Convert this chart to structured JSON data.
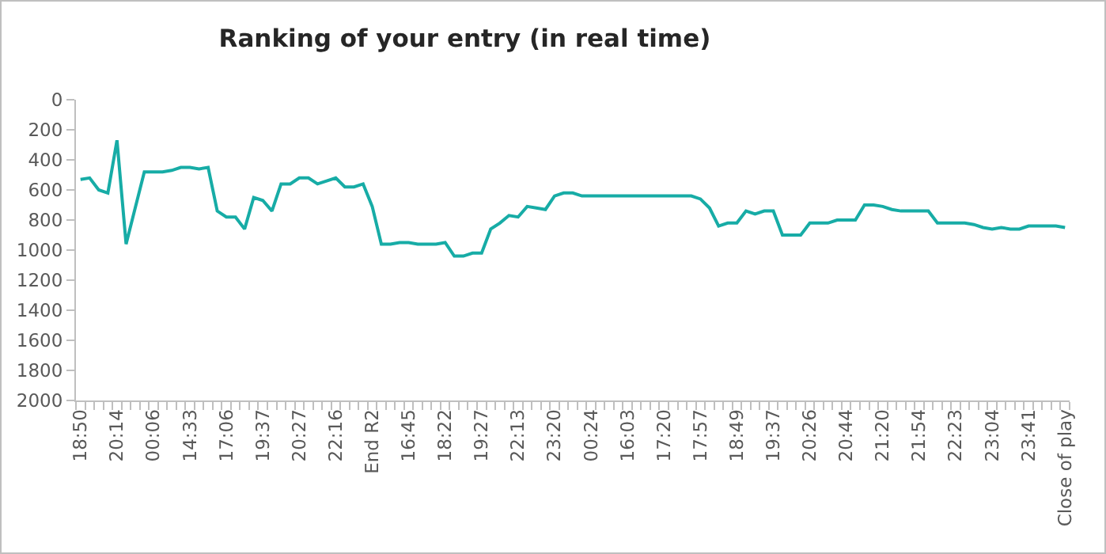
{
  "chart_data": {
    "type": "line",
    "title": "Ranking of your entry (in real time)",
    "categories": [
      "18:50",
      null,
      null,
      null,
      "20:14",
      null,
      null,
      null,
      "00:06",
      null,
      null,
      null,
      "14:33",
      null,
      null,
      null,
      "17:06",
      null,
      null,
      null,
      "19:37",
      null,
      null,
      null,
      "20:27",
      null,
      null,
      null,
      "22:16",
      null,
      null,
      null,
      "End R2",
      null,
      null,
      null,
      "16:45",
      null,
      null,
      null,
      "18:22",
      null,
      null,
      null,
      "19:27",
      null,
      null,
      null,
      "22:13",
      null,
      null,
      null,
      "23:20",
      null,
      null,
      null,
      "00:24",
      null,
      null,
      null,
      "16:03",
      null,
      null,
      null,
      "17:20",
      null,
      null,
      null,
      "17:57",
      null,
      null,
      null,
      "18:49",
      null,
      null,
      null,
      "19:37",
      null,
      null,
      null,
      "20:26",
      null,
      null,
      null,
      "20:44",
      null,
      null,
      null,
      "21:20",
      null,
      null,
      null,
      "21:54",
      null,
      null,
      null,
      "22:23",
      null,
      null,
      null,
      "23:04",
      null,
      null,
      null,
      "23:41",
      null,
      null,
      null,
      "Close of play"
    ],
    "series": [
      {
        "color": "#17aca6",
        "values": [
          530,
          520,
          600,
          620,
          270,
          960,
          720,
          480,
          480,
          480,
          470,
          450,
          450,
          460,
          450,
          740,
          780,
          780,
          860,
          650,
          670,
          740,
          560,
          560,
          520,
          520,
          560,
          540,
          520,
          580,
          580,
          560,
          710,
          960,
          960,
          950,
          950,
          960,
          960,
          960,
          950,
          1040,
          1040,
          1020,
          1020,
          860,
          820,
          770,
          780,
          710,
          720,
          730,
          640,
          620,
          620,
          640,
          640,
          640,
          640,
          640,
          640,
          640,
          640,
          640,
          640,
          640,
          640,
          640,
          660,
          720,
          840,
          820,
          820,
          740,
          760,
          740,
          740,
          900,
          900,
          900,
          820,
          820,
          820,
          800,
          800,
          800,
          700,
          700,
          710,
          730,
          740,
          740,
          740,
          740,
          820,
          820,
          820,
          820,
          830,
          850,
          860,
          850,
          860,
          860,
          840,
          840,
          840,
          840,
          850
        ]
      }
    ],
    "ylim": [
      2000,
      0
    ],
    "yticks": [
      0,
      200,
      400,
      600,
      800,
      1000,
      1200,
      1400,
      1600,
      1800,
      2000
    ],
    "grid": false,
    "marker": "none",
    "line_style": "solid"
  }
}
